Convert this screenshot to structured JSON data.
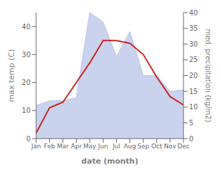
{
  "chart_data": {
    "type": "line",
    "xlabel": "date (month)",
    "ylabel": "max temp (C)",
    "y2label": "med. precipitation (kg/m2)",
    "categories": [
      "Jan",
      "Feb",
      "Mar",
      "Apr",
      "May",
      "Jun",
      "Jul",
      "Aug",
      "Sep",
      "Oct",
      "Nov",
      "Dec"
    ],
    "series": [
      {
        "type": "area",
        "axis": "y2",
        "color": "#b8c4e8",
        "values": [
          10.5,
          12,
          12,
          13,
          40,
          37,
          26,
          34,
          20,
          20,
          15,
          15.5
        ]
      },
      {
        "type": "line",
        "color": "#cc2222",
        "values": [
          2,
          11,
          13,
          20,
          27,
          35,
          35,
          34,
          30,
          22,
          15,
          12
        ]
      }
    ],
    "ylim": [
      0,
      45
    ],
    "yticks": [
      0,
      10,
      20,
      30,
      40
    ],
    "y2lim": [
      0,
      40
    ],
    "y2ticks": [
      0,
      5,
      10,
      15,
      20,
      25,
      30,
      35,
      40
    ]
  }
}
